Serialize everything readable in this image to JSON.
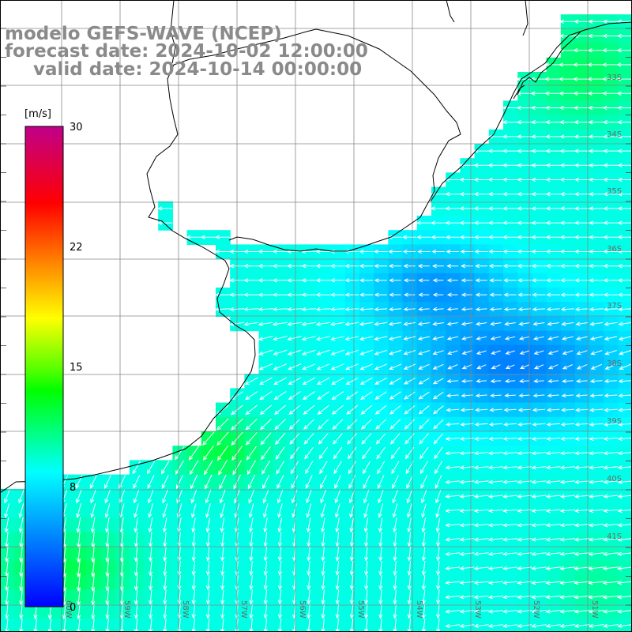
{
  "title": {
    "model": "modelo GEFS-WAVE (NCEP)",
    "forecast": "forecast date: 2024-10-02 12:00:00",
    "valid": "valid date: 2024-10-14 00:00:00"
  },
  "colorbar": {
    "unit": "[m/s]",
    "ticks": [
      "30",
      "22",
      "15",
      "8",
      "0"
    ],
    "range": [
      0,
      30
    ],
    "colors": [
      "#0000ff",
      "#0080ff",
      "#00ffff",
      "#00ff00",
      "#ffff00",
      "#ff8000",
      "#ff0000",
      "#c0008a"
    ]
  },
  "grid": {
    "lat_labels": [
      "33S",
      "34S",
      "35S",
      "36S",
      "37S",
      "38S",
      "39S",
      "40S",
      "41S"
    ],
    "lon_labels": [
      "60W",
      "59W",
      "58W",
      "57W",
      "56W",
      "55W",
      "54W",
      "53W",
      "52W",
      "51W"
    ]
  },
  "map_elements": {
    "land_color": "#ffffff",
    "coast_color": "#000000",
    "grid_color": "#888888",
    "arrow_color": "#ffffff"
  }
}
